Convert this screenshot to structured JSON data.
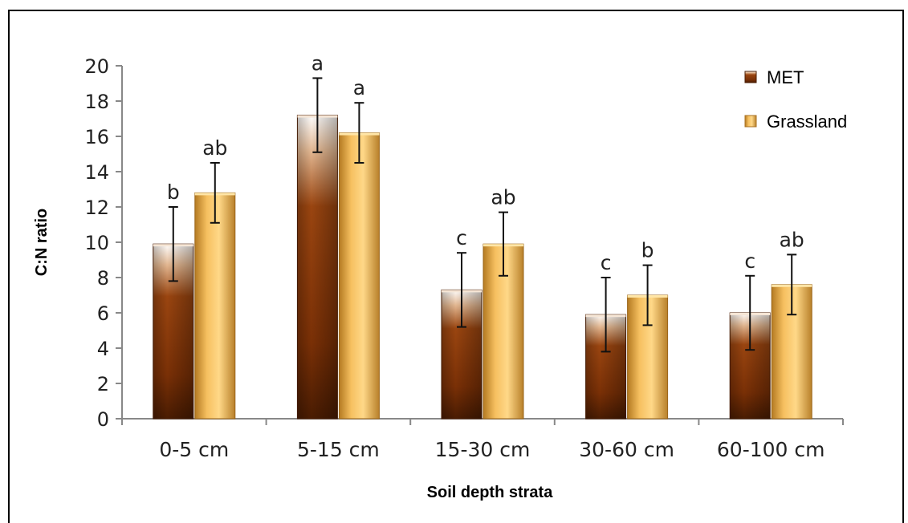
{
  "chart_data": {
    "type": "bar",
    "xlabel": "Soil depth strata",
    "ylabel": "C:N ratio",
    "ylim": [
      0,
      20
    ],
    "yticks": [
      "0",
      "2",
      "4",
      "6",
      "8",
      "10",
      "12",
      "14",
      "16",
      "18",
      "20"
    ],
    "categories": [
      "0-5 cm",
      "5-15 cm",
      "15-30 cm",
      "30-60 cm",
      "60-100 cm"
    ],
    "legend_position": "top-right",
    "grid": false,
    "series": [
      {
        "name": "MET",
        "color": "#8a3a08",
        "values": [
          9.9,
          17.2,
          7.3,
          5.9,
          6.0
        ],
        "error": [
          2.1,
          2.1,
          2.1,
          2.1,
          2.1
        ],
        "letters": [
          "b",
          "a",
          "c",
          "c",
          "c"
        ]
      },
      {
        "name": "Grassland",
        "color": "#f0b14a",
        "values": [
          12.8,
          16.2,
          9.9,
          7.0,
          7.6
        ],
        "error": [
          1.7,
          1.7,
          1.8,
          1.7,
          1.7
        ],
        "letters": [
          "ab",
          "a",
          "ab",
          "b",
          "ab"
        ]
      }
    ]
  }
}
